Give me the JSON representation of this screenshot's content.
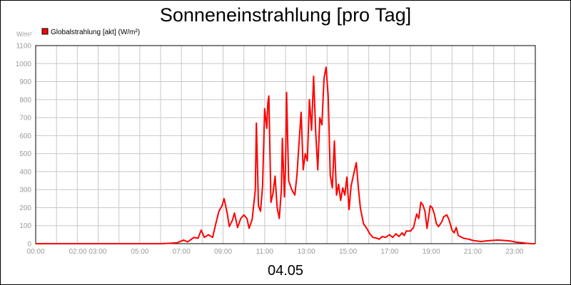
{
  "chart_data": {
    "type": "line",
    "title": "Sonneneinstrahlung [pro Tag]",
    "ylabel": "W/m²",
    "xlabel": "",
    "date_label": "04.05",
    "ylim": [
      0,
      1100
    ],
    "xlim": [
      0,
      24
    ],
    "y_ticks": [
      "0",
      "100",
      "200",
      "300",
      "400",
      "500",
      "600",
      "700",
      "800",
      "900",
      "1000",
      "1100"
    ],
    "x_ticks": [
      "00:00",
      "02:00 03:00",
      "05:00",
      "07:00",
      "09:00",
      "11:00",
      "13:00",
      "15:00",
      "17:00",
      "19:00",
      "21:00",
      "23:00"
    ],
    "grid": true,
    "legend": "top-left",
    "series": [
      {
        "name": "Globalstrahlung [akt] (W/m²)",
        "color": "#ff0000",
        "points": [
          [
            0.0,
            0
          ],
          [
            6.0,
            0
          ],
          [
            6.4,
            2
          ],
          [
            6.8,
            5
          ],
          [
            7.0,
            15
          ],
          [
            7.1,
            20
          ],
          [
            7.3,
            10
          ],
          [
            7.6,
            35
          ],
          [
            7.8,
            30
          ],
          [
            7.95,
            75
          ],
          [
            8.1,
            35
          ],
          [
            8.3,
            50
          ],
          [
            8.5,
            35
          ],
          [
            8.65,
            110
          ],
          [
            8.8,
            180
          ],
          [
            8.95,
            210
          ],
          [
            9.05,
            250
          ],
          [
            9.2,
            170
          ],
          [
            9.3,
            95
          ],
          [
            9.45,
            130
          ],
          [
            9.55,
            170
          ],
          [
            9.7,
            90
          ],
          [
            9.85,
            140
          ],
          [
            10.0,
            160
          ],
          [
            10.15,
            140
          ],
          [
            10.25,
            85
          ],
          [
            10.4,
            135
          ],
          [
            10.55,
            300
          ],
          [
            10.6,
            670
          ],
          [
            10.7,
            210
          ],
          [
            10.8,
            180
          ],
          [
            10.9,
            320
          ],
          [
            11.0,
            750
          ],
          [
            11.1,
            640
          ],
          [
            11.15,
            780
          ],
          [
            11.2,
            820
          ],
          [
            11.3,
            230
          ],
          [
            11.4,
            280
          ],
          [
            11.5,
            375
          ],
          [
            11.6,
            200
          ],
          [
            11.7,
            140
          ],
          [
            11.8,
            300
          ],
          [
            11.85,
            585
          ],
          [
            11.95,
            260
          ],
          [
            12.0,
            420
          ],
          [
            12.05,
            840
          ],
          [
            12.15,
            350
          ],
          [
            12.3,
            300
          ],
          [
            12.45,
            270
          ],
          [
            12.55,
            380
          ],
          [
            12.65,
            560
          ],
          [
            12.75,
            730
          ],
          [
            12.85,
            410
          ],
          [
            12.95,
            500
          ],
          [
            13.05,
            460
          ],
          [
            13.15,
            800
          ],
          [
            13.25,
            630
          ],
          [
            13.35,
            930
          ],
          [
            13.45,
            620
          ],
          [
            13.55,
            410
          ],
          [
            13.65,
            700
          ],
          [
            13.75,
            660
          ],
          [
            13.85,
            920
          ],
          [
            13.95,
            980
          ],
          [
            14.05,
            820
          ],
          [
            14.15,
            380
          ],
          [
            14.25,
            310
          ],
          [
            14.35,
            570
          ],
          [
            14.45,
            270
          ],
          [
            14.55,
            330
          ],
          [
            14.65,
            240
          ],
          [
            14.75,
            310
          ],
          [
            14.85,
            270
          ],
          [
            14.95,
            370
          ],
          [
            15.05,
            190
          ],
          [
            15.15,
            320
          ],
          [
            15.3,
            400
          ],
          [
            15.4,
            450
          ],
          [
            15.5,
            310
          ],
          [
            15.6,
            195
          ],
          [
            15.75,
            110
          ],
          [
            15.9,
            85
          ],
          [
            16.05,
            55
          ],
          [
            16.2,
            35
          ],
          [
            16.4,
            30
          ],
          [
            16.5,
            25
          ],
          [
            16.65,
            40
          ],
          [
            16.8,
            35
          ],
          [
            17.0,
            50
          ],
          [
            17.15,
            35
          ],
          [
            17.3,
            55
          ],
          [
            17.45,
            40
          ],
          [
            17.6,
            60
          ],
          [
            17.7,
            45
          ],
          [
            17.8,
            70
          ],
          [
            18.0,
            70
          ],
          [
            18.15,
            90
          ],
          [
            18.3,
            165
          ],
          [
            18.4,
            140
          ],
          [
            18.5,
            230
          ],
          [
            18.6,
            215
          ],
          [
            18.7,
            180
          ],
          [
            18.8,
            85
          ],
          [
            18.95,
            210
          ],
          [
            19.05,
            200
          ],
          [
            19.15,
            165
          ],
          [
            19.25,
            110
          ],
          [
            19.35,
            95
          ],
          [
            19.5,
            120
          ],
          [
            19.6,
            150
          ],
          [
            19.75,
            160
          ],
          [
            19.85,
            135
          ],
          [
            20.0,
            75
          ],
          [
            20.1,
            60
          ],
          [
            20.2,
            90
          ],
          [
            20.3,
            45
          ],
          [
            20.55,
            30
          ],
          [
            20.8,
            25
          ],
          [
            21.0,
            18
          ],
          [
            21.2,
            15
          ],
          [
            21.4,
            12
          ],
          [
            21.6,
            15
          ],
          [
            21.9,
            18
          ],
          [
            22.2,
            20
          ],
          [
            22.5,
            18
          ],
          [
            22.8,
            15
          ],
          [
            23.1,
            8
          ],
          [
            23.4,
            5
          ],
          [
            23.6,
            2
          ],
          [
            23.8,
            0
          ],
          [
            24.0,
            0
          ]
        ]
      }
    ]
  }
}
